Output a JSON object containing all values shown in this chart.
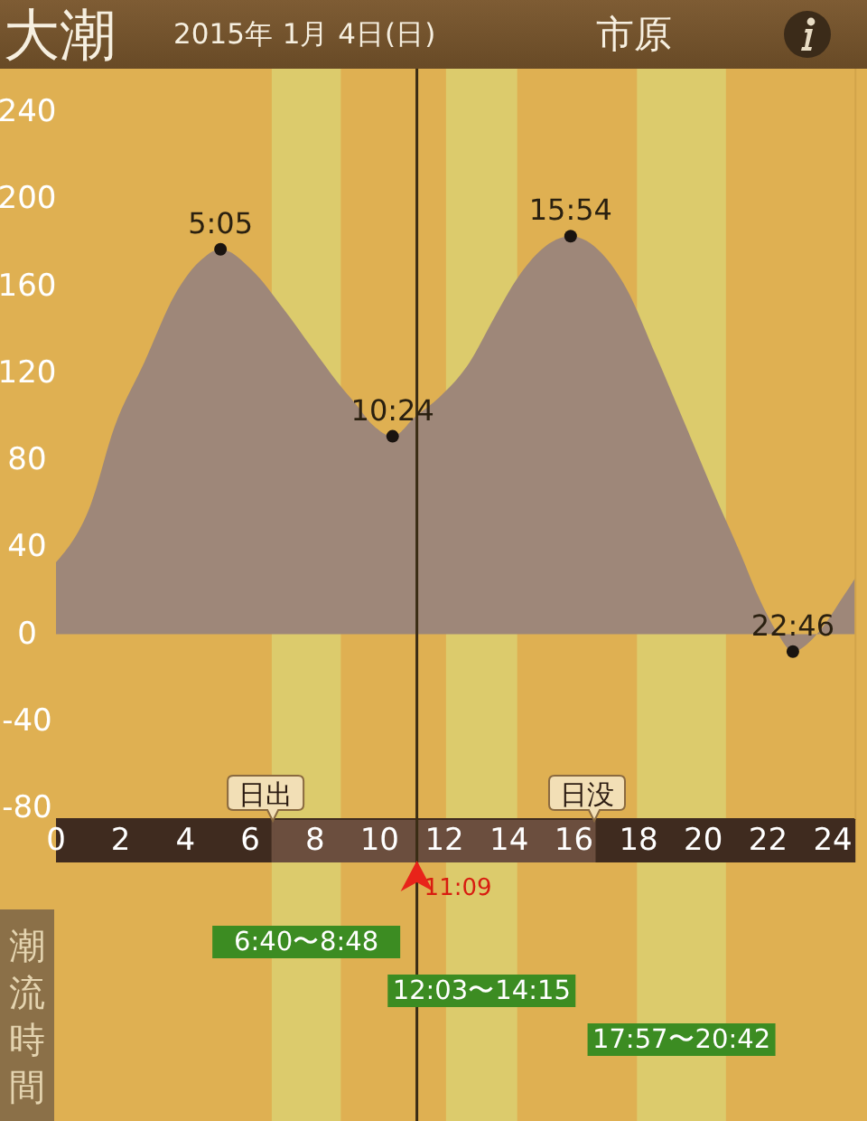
{
  "chart_data": {
    "type": "area",
    "title": "大潮",
    "subtitle": "2015年 1月 4日(日)",
    "annotations": [
      "市原",
      "潮流時間",
      {
        "text": "5:05",
        "x": 5.083,
        "y": 177
      },
      {
        "text": "10:24",
        "x": 10.4,
        "y": 91
      },
      {
        "text": "15:54",
        "x": 15.9,
        "y": 183
      },
      {
        "text": "22:46",
        "x": 22.767,
        "y": -8
      }
    ],
    "series": [
      {
        "color": "#9e8779",
        "x": [
          0,
          1.06,
          1.8,
          2.73,
          3.67,
          4.41,
          5.083,
          6.08,
          7.01,
          7.94,
          8.69,
          9.25,
          9.8,
          10.4,
          11.1,
          11.85,
          12.78,
          13.52,
          14.27,
          15.01,
          15.9,
          16.87,
          17.62,
          18.54,
          19.48,
          20.41,
          21.15,
          21.71,
          22.27,
          22.767,
          23.57,
          24.31,
          24.7
        ],
        "values": [
          33,
          59,
          95,
          125,
          156,
          171,
          177,
          167,
          150,
          131,
          116,
          106,
          96,
          91,
          100,
          109,
          125,
          145,
          164,
          177,
          183,
          175,
          159,
          128,
          95,
          62,
          37,
          17,
          1,
          -8,
          1,
          17,
          26
        ]
      },
      {
        "type": "scatter",
        "color": "#1a1410",
        "marker": "circle",
        "x": [
          5.083,
          10.4,
          15.9,
          22.767
        ],
        "values": [
          177,
          91,
          183,
          -8
        ]
      }
    ],
    "xlim": [
      0,
      24.7
    ],
    "xticks": [
      0,
      2,
      4,
      6,
      8,
      10,
      12,
      14,
      16,
      18,
      20,
      22,
      24
    ],
    "ylim": [
      -85,
      260
    ],
    "yticks": [
      -80,
      -40,
      0,
      40,
      80,
      120,
      160,
      200,
      240
    ],
    "bands": [
      {
        "axis": "x",
        "from": 6.667,
        "to": 8.8,
        "label": "6:40〜8:48",
        "color": "#dccb6c"
      },
      {
        "axis": "x",
        "from": 12.05,
        "to": 14.25,
        "label": "12:03〜14:15",
        "color": "#dccb6c"
      },
      {
        "axis": "x",
        "from": 17.95,
        "to": 20.7,
        "label": "17:57〜20:42",
        "color": "#dccb6c"
      }
    ],
    "ref_lines": [
      {
        "axis": "x",
        "value": 11.15,
        "label": "11:09",
        "color": "#3a2c14"
      },
      {
        "axis": "x",
        "value": 6.7,
        "label": "日出",
        "color": "#6b4e3e"
      },
      {
        "axis": "x",
        "value": 16.63,
        "label": "日没",
        "color": "#6b4e3e"
      }
    ]
  }
}
